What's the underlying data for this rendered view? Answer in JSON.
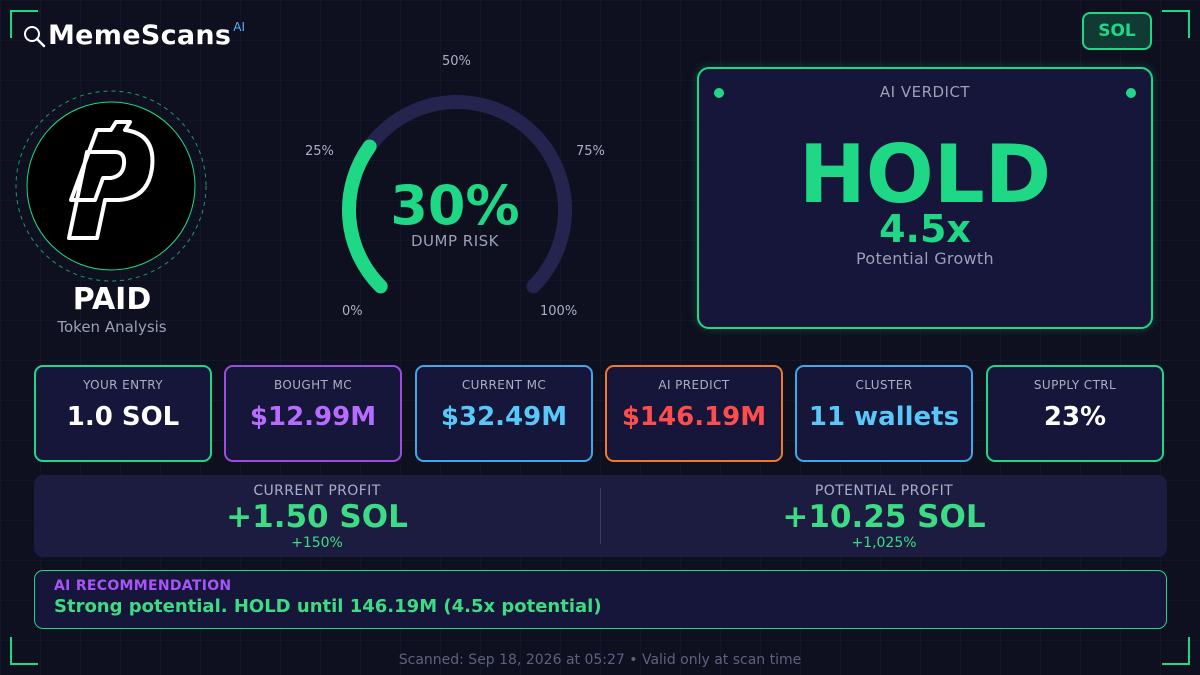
{
  "brand": {
    "name": "MemeScans",
    "ai_tag": "AI",
    "icon": "search-icon"
  },
  "chain_badge": "SOL",
  "token": {
    "name": "PAID",
    "subtitle": "Token Analysis",
    "logo_icon": "paid-logo-icon"
  },
  "gauge": {
    "value_text": "30%",
    "fraction": 0.3,
    "caption": "DUMP RISK",
    "tick_labels": {
      "t0": "0%",
      "t25": "25%",
      "t50": "50%",
      "t75": "75%",
      "t100": "100%"
    }
  },
  "verdict": {
    "title": "AI VERDICT",
    "decision": "HOLD",
    "multiplier": "4.5x",
    "subtitle": "Potential Growth"
  },
  "stats": [
    {
      "label": "YOUR ENTRY",
      "value": "1.0 SOL",
      "color": "#ffffff",
      "border": "#1fd885"
    },
    {
      "label": "BOUGHT MC",
      "value": "$12.99M",
      "color": "#b86bff",
      "border": "#9b4de0"
    },
    {
      "label": "CURRENT MC",
      "value": "$32.49M",
      "color": "#59c7f7",
      "border": "#3ea8e8"
    },
    {
      "label": "AI PREDICT",
      "value": "$146.19M",
      "color": "#ff4d4d",
      "border": "#f07a2a"
    },
    {
      "label": "CLUSTER",
      "value": "11 wallets",
      "color": "#59c7f7",
      "border": "#3ea8e8"
    },
    {
      "label": "SUPPLY CTRL",
      "value": "23%",
      "color": "#ffffff",
      "border": "#1fd885"
    }
  ],
  "profit": {
    "current": {
      "label": "CURRENT PROFIT",
      "value": "+1.50 SOL",
      "pct": "+150%"
    },
    "potential": {
      "label": "POTENTIAL PROFIT",
      "value": "+10.25 SOL",
      "pct": "+1,025%"
    }
  },
  "recommendation": {
    "title": "AI RECOMMENDATION",
    "text": "Strong potential. HOLD until 146.19M (4.5x potential)"
  },
  "footer": "Scanned: Sep 18, 2026 at 05:27  •  Valid only at scan time",
  "colors": {
    "accent": "#1fd885",
    "background": "#0e0f1f",
    "panel": "#15163a",
    "gauge_track": "#25244f"
  }
}
